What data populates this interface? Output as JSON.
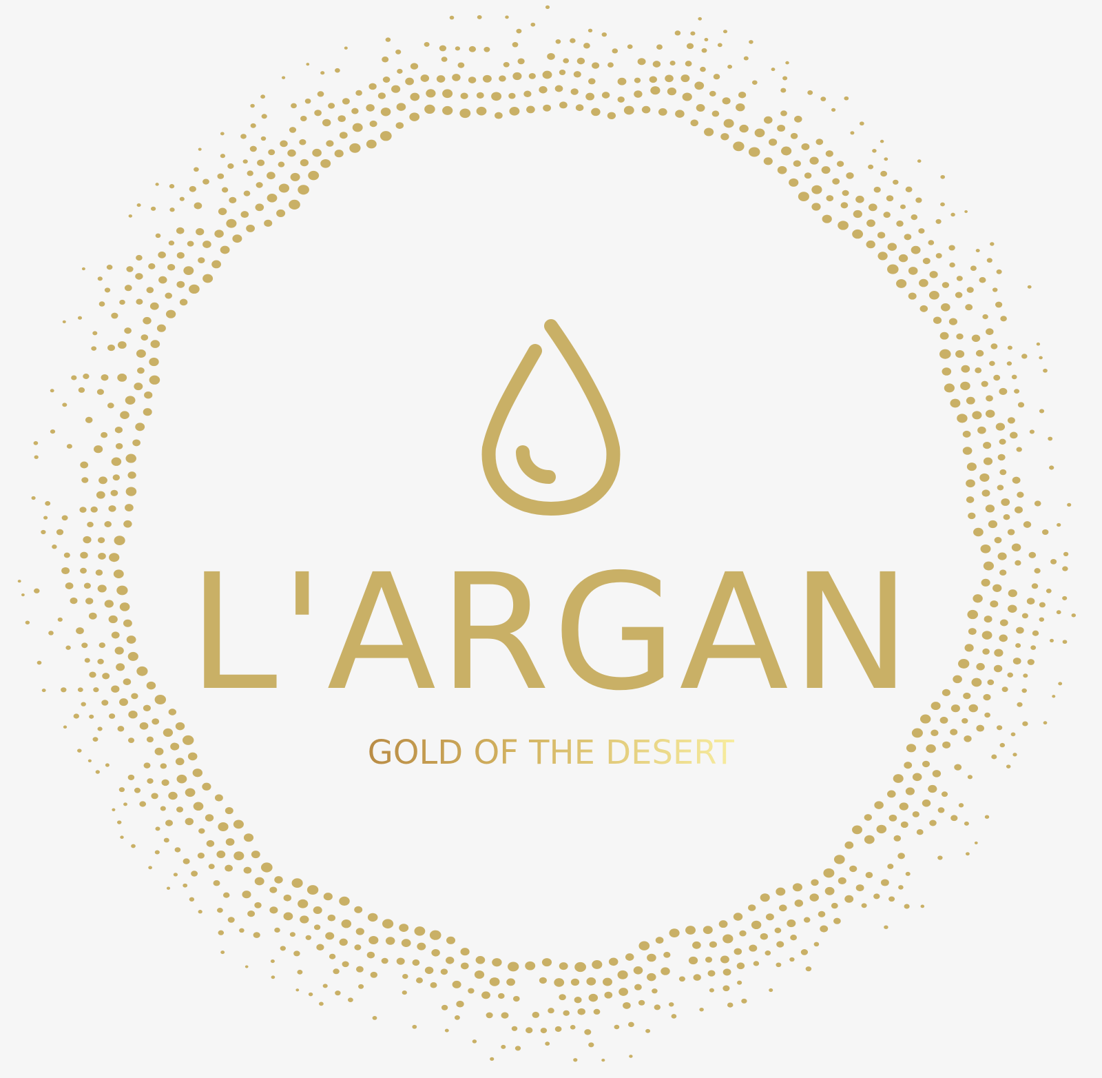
{
  "logo": {
    "brand_name": "L'ARGAN",
    "tagline": "GOLD OF THE DESERT",
    "icon": "oil-drop-icon",
    "decoration": "dotted-circle-ring"
  },
  "colors": {
    "background": "#f6f6f6",
    "gold": "#c9b066",
    "tagline_gradient_start": "#b98c45",
    "tagline_gradient_end": "#f7ec9f"
  }
}
